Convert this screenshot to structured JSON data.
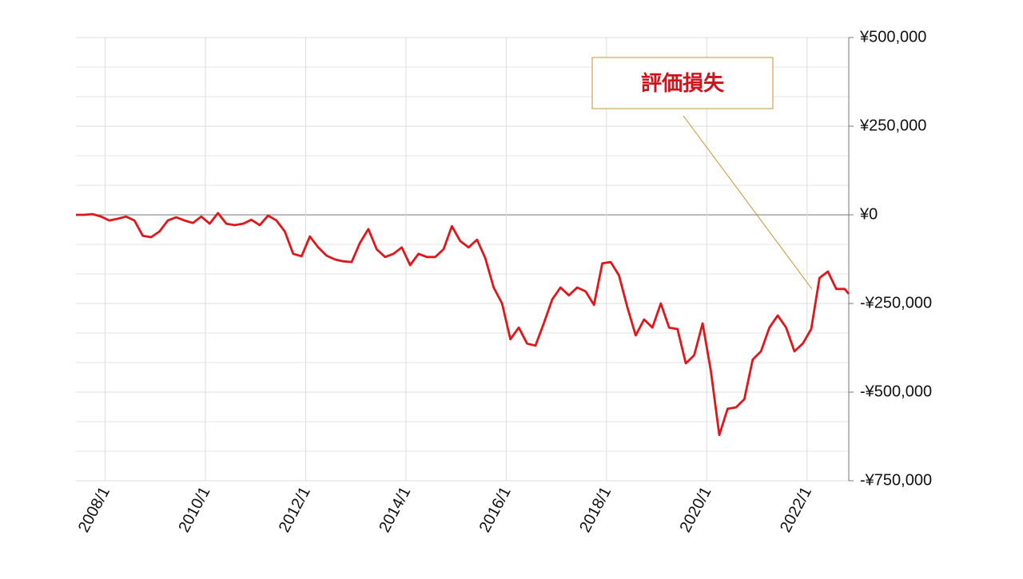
{
  "chart_data": {
    "type": "line",
    "annotation": "評価損失",
    "x": [
      "2007/6",
      "2007/8",
      "2007/10",
      "2007/12",
      "2008/2",
      "2008/4",
      "2008/6",
      "2008/8",
      "2008/10",
      "2008/12",
      "2009/2",
      "2009/4",
      "2009/6",
      "2009/8",
      "2009/10",
      "2009/12",
      "2010/2",
      "2010/4",
      "2010/6",
      "2010/8",
      "2010/10",
      "2010/12",
      "2011/2",
      "2011/4",
      "2011/6",
      "2011/8",
      "2011/10",
      "2011/12",
      "2012/2",
      "2012/4",
      "2012/6",
      "2012/8",
      "2012/10",
      "2012/12",
      "2013/2",
      "2013/4",
      "2013/6",
      "2013/8",
      "2013/10",
      "2013/12",
      "2014/2",
      "2014/4",
      "2014/6",
      "2014/8",
      "2014/10",
      "2014/12",
      "2015/2",
      "2015/4",
      "2015/6",
      "2015/8",
      "2015/10",
      "2015/12",
      "2016/2",
      "2016/4",
      "2016/6",
      "2016/8",
      "2016/10",
      "2016/12",
      "2017/2",
      "2017/4",
      "2017/6",
      "2017/8",
      "2017/10",
      "2017/12",
      "2018/2",
      "2018/4",
      "2018/6",
      "2018/8",
      "2018/10",
      "2018/12",
      "2019/2",
      "2019/4",
      "2019/6",
      "2019/8",
      "2019/10",
      "2019/12",
      "2020/2",
      "2020/4",
      "2020/6",
      "2020/8",
      "2020/10",
      "2020/12",
      "2021/2",
      "2021/4",
      "2021/6",
      "2021/8",
      "2021/10",
      "2021/12",
      "2022/2",
      "2022/4",
      "2022/6",
      "2022/8",
      "2022/10",
      "2022/11"
    ],
    "values": [
      0,
      0,
      2000,
      -5000,
      -16000,
      -11000,
      -5000,
      -16000,
      -59000,
      -63000,
      -47000,
      -16000,
      -7000,
      -16000,
      -23000,
      -5000,
      -25000,
      5000,
      -25000,
      -29000,
      -25000,
      -14000,
      -29000,
      -2000,
      -16000,
      -47000,
      -110000,
      -117000,
      -61000,
      -92000,
      -115000,
      -126000,
      -131000,
      -133000,
      -79000,
      -40000,
      -97000,
      -119000,
      -110000,
      -92000,
      -142000,
      -110000,
      -119000,
      -119000,
      -97000,
      -32000,
      -74000,
      -92000,
      -70000,
      -122000,
      -205000,
      -250000,
      -351000,
      -318000,
      -363000,
      -369000,
      -306000,
      -239000,
      -205000,
      -227000,
      -205000,
      -216000,
      -254000,
      -137000,
      -133000,
      -171000,
      -261000,
      -340000,
      -295000,
      -318000,
      -250000,
      -318000,
      -322000,
      -419000,
      -396000,
      -306000,
      -441000,
      -621000,
      -547000,
      -543000,
      -520000,
      -408000,
      -385000,
      -318000,
      -284000,
      -318000,
      -385000,
      -363000,
      -322000,
      -178000,
      -160000,
      -209000,
      -209000,
      -223000
    ],
    "color": "#e0161b",
    "xlim": [
      "2007/6",
      "2022/11"
    ],
    "xticks": [
      "2008/1",
      "2010/1",
      "2012/1",
      "2014/1",
      "2016/1",
      "2018/1",
      "2020/1",
      "2022/1"
    ],
    "ylim": [
      -750000,
      500000
    ],
    "yticks": [
      {
        "value": 500000,
        "label": "¥500,000"
      },
      {
        "value": 250000,
        "label": "¥250,000"
      },
      {
        "value": 0,
        "label": "¥0"
      },
      {
        "value": -250000,
        "label": "-¥250,000"
      },
      {
        "value": -500000,
        "label": "-¥500,000"
      },
      {
        "value": -750000,
        "label": "-¥750,000"
      }
    ],
    "grid": true
  }
}
